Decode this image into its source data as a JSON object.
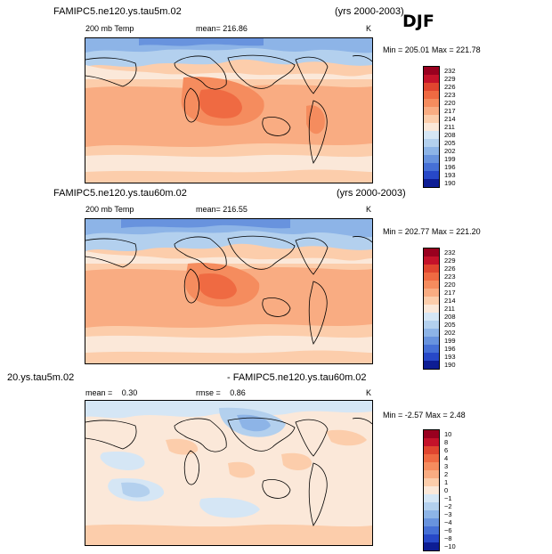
{
  "season": "DJF",
  "panels": [
    {
      "title": "FAMIPC5.ne120.ys.tau5m.02",
      "years": "(yrs 2000-2003)",
      "variable": "200 mb Temp",
      "mean_label": "mean=",
      "mean_value": "216.86",
      "units": "K",
      "min_label": "Min =",
      "min_value": "205.01",
      "max_label": "Max =",
      "max_value": "221.78",
      "colorbar_ticks": [
        "232",
        "229",
        "226",
        "223",
        "220",
        "217",
        "214",
        "211",
        "208",
        "205",
        "202",
        "199",
        "196",
        "193",
        "190"
      ]
    },
    {
      "title": "FAMIPC5.ne120.ys.tau60m.02",
      "years": "(yrs 2000-2003)",
      "variable": "200 mb Temp",
      "mean_label": "mean=",
      "mean_value": "216.55",
      "units": "K",
      "min_label": "Min =",
      "min_value": "202.77",
      "max_label": "Max =",
      "max_value": "221.20",
      "colorbar_ticks": [
        "232",
        "229",
        "226",
        "223",
        "220",
        "217",
        "214",
        "211",
        "208",
        "205",
        "202",
        "199",
        "196",
        "193",
        "190"
      ]
    },
    {
      "title_left": "20.ys.tau5m.02",
      "title_right": "- FAMIPC5.ne120.ys.tau60m.02",
      "mean_label": "mean =",
      "mean_value": "0.30",
      "rmse_label": "rmse =",
      "rmse_value": "0.86",
      "units": "K",
      "min_label": "Min =",
      "min_value": "-2.57",
      "max_label": "Max =",
      "max_value": "2.48",
      "colorbar_ticks": [
        "10",
        "8",
        "6",
        "4",
        "3",
        "2",
        "1",
        "0",
        "−1",
        "−2",
        "−3",
        "−4",
        "−6",
        "−8",
        "−10"
      ]
    }
  ],
  "colors": {
    "palette": [
      "#99001f",
      "#c4122a",
      "#e0452f",
      "#ef6a42",
      "#f58c5e",
      "#f9ac82",
      "#fccdab",
      "#fbe8d9",
      "#d5e6f5",
      "#b3d0ee",
      "#8db4e7",
      "#6893de",
      "#4670d6",
      "#2748c8",
      "#0d1d94"
    ]
  }
}
